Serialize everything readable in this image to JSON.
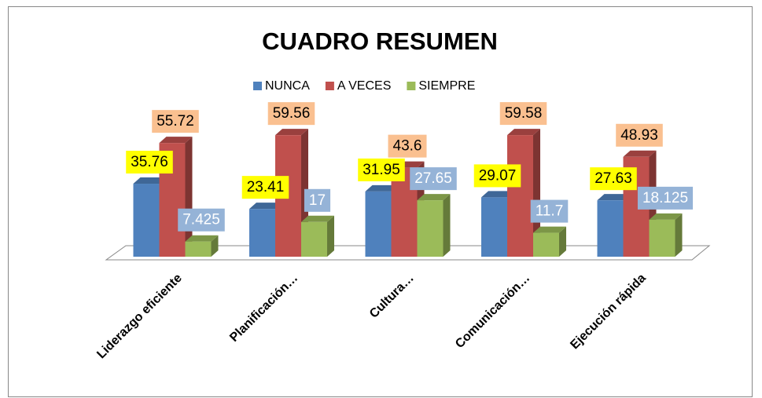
{
  "chart_data": {
    "type": "bar3d",
    "title": "CUADRO RESUMEN",
    "categories": [
      "Liderazgo eficiente",
      "Planificación…",
      "Cultura…",
      "Comunicación…",
      "Ejecución rápida"
    ],
    "series": [
      {
        "name": "NUNCA",
        "color": "#4f81bd",
        "label_fill": "#ffff00",
        "label_color": "#000000",
        "values": [
          35.76,
          23.41,
          31.95,
          29.07,
          27.63
        ]
      },
      {
        "name": "A VECES",
        "color": "#c0504d",
        "label_fill": "#fac090",
        "label_color": "#000000",
        "values": [
          55.72,
          59.56,
          43.6,
          59.58,
          48.93
        ]
      },
      {
        "name": "SIEMPRE",
        "color": "#9bbb59",
        "label_fill": "#95b3d7",
        "label_color": "#ffffff",
        "values": [
          7.425,
          17,
          27.65,
          11.7,
          18.125
        ]
      }
    ],
    "legend": "top"
  }
}
